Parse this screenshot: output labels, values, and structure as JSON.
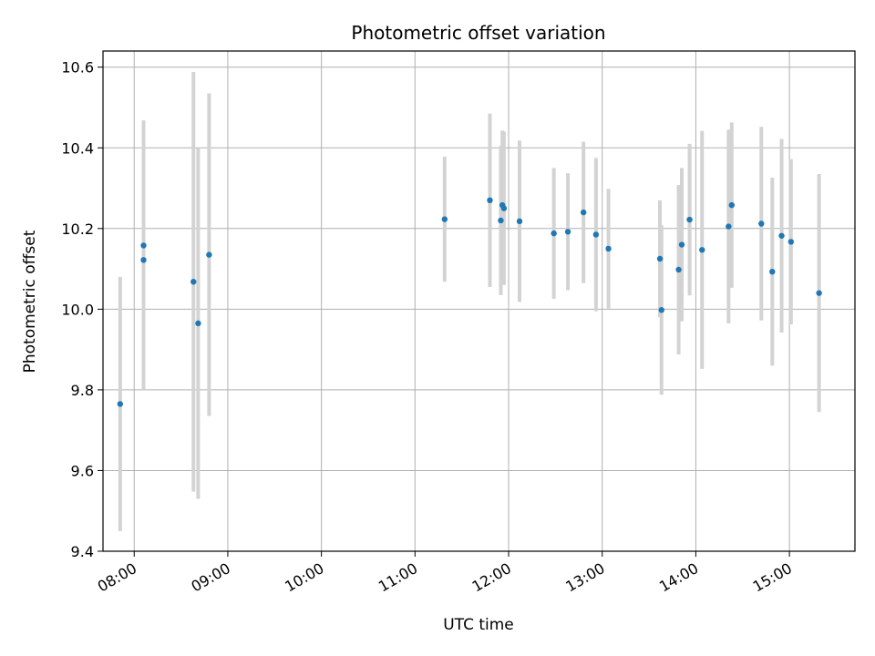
{
  "chart_data": {
    "type": "scatter",
    "title": "Photometric offset variation",
    "xlabel": "UTC time",
    "ylabel": "Photometric offset",
    "xlim": [
      "07:40",
      "15:42"
    ],
    "ylim": [
      9.4,
      10.64
    ],
    "grid": true,
    "x_ticks": [
      "08:00",
      "09:00",
      "10:00",
      "11:00",
      "12:00",
      "13:00",
      "14:00",
      "15:00"
    ],
    "y_ticks": [
      9.4,
      9.6,
      9.8,
      10.0,
      10.2,
      10.4,
      10.6
    ],
    "y_tick_labels": [
      "9.4",
      "9.6",
      "9.8",
      "10.0",
      "10.2",
      "10.4",
      "10.6"
    ],
    "colors": {
      "marker": "#1f77b4",
      "errorbar": "#d3d3d3",
      "grid": "#b0b0b0"
    },
    "points": [
      {
        "x": "07:51",
        "y": 9.765,
        "err": 0.315
      },
      {
        "x": "08:06",
        "y": 10.122,
        "err": 0.32
      },
      {
        "x": "08:06",
        "y": 10.158,
        "err": 0.31
      },
      {
        "x": "08:38",
        "y": 10.068,
        "err": 0.52
      },
      {
        "x": "08:41",
        "y": 9.965,
        "err": 0.435
      },
      {
        "x": "08:48",
        "y": 10.135,
        "err": 0.4
      },
      {
        "x": "11:19",
        "y": 10.223,
        "err": 0.155
      },
      {
        "x": "11:48",
        "y": 10.27,
        "err": 0.215
      },
      {
        "x": "11:55",
        "y": 10.22,
        "err": 0.185
      },
      {
        "x": "11:56",
        "y": 10.258,
        "err": 0.185
      },
      {
        "x": "11:57",
        "y": 10.25,
        "err": 0.19
      },
      {
        "x": "12:07",
        "y": 10.218,
        "err": 0.2
      },
      {
        "x": "12:29",
        "y": 10.188,
        "err": 0.162
      },
      {
        "x": "12:38",
        "y": 10.192,
        "err": 0.145
      },
      {
        "x": "12:48",
        "y": 10.24,
        "err": 0.175
      },
      {
        "x": "12:56",
        "y": 10.185,
        "err": 0.19
      },
      {
        "x": "13:04",
        "y": 10.15,
        "err": 0.148
      },
      {
        "x": "13:37",
        "y": 10.125,
        "err": 0.145
      },
      {
        "x": "13:38",
        "y": 9.998,
        "err": 0.21
      },
      {
        "x": "13:49",
        "y": 10.098,
        "err": 0.21
      },
      {
        "x": "13:51",
        "y": 10.16,
        "err": 0.19
      },
      {
        "x": "13:56",
        "y": 10.222,
        "err": 0.188
      },
      {
        "x": "14:04",
        "y": 10.147,
        "err": 0.295
      },
      {
        "x": "14:21",
        "y": 10.205,
        "err": 0.24
      },
      {
        "x": "14:23",
        "y": 10.258,
        "err": 0.205
      },
      {
        "x": "14:42",
        "y": 10.212,
        "err": 0.24
      },
      {
        "x": "14:49",
        "y": 10.093,
        "err": 0.233
      },
      {
        "x": "14:55",
        "y": 10.182,
        "err": 0.24
      },
      {
        "x": "15:01",
        "y": 10.167,
        "err": 0.205
      },
      {
        "x": "15:19",
        "y": 10.04,
        "err": 0.295
      }
    ]
  }
}
